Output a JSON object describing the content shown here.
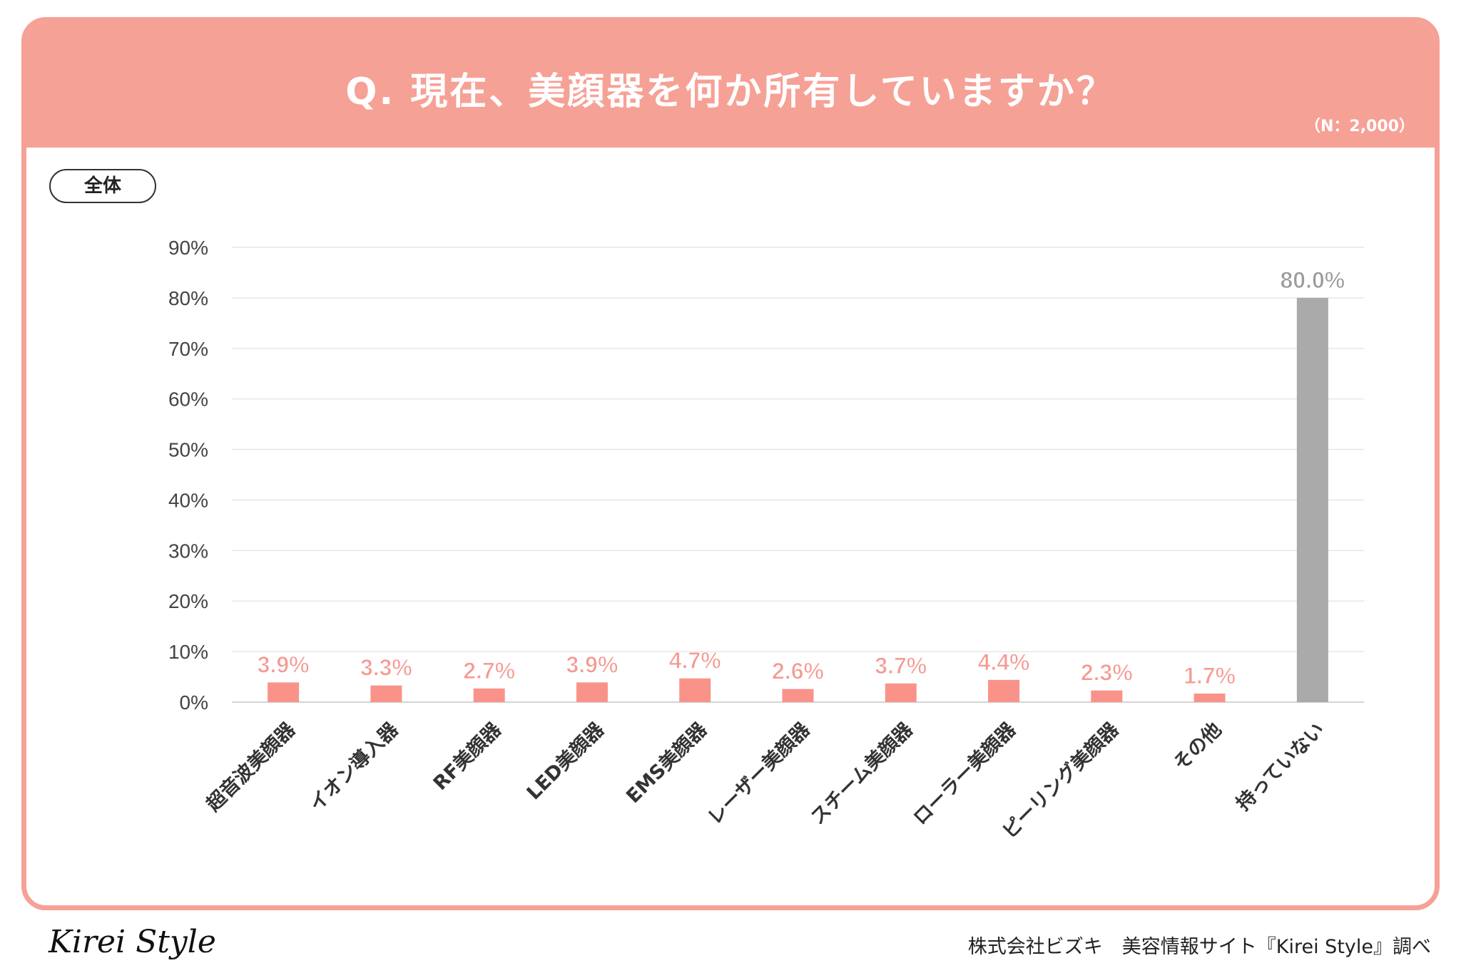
{
  "header": {
    "title": "Q. 現在、美顔器を何か所有していますか？",
    "sample_note": "（N：2,000）"
  },
  "segment_label": "全体",
  "footer": {
    "logo": "Kirei Style",
    "credit": "株式会社ビズキ　美容情報サイト『Kirei Style』調べ"
  },
  "colors": {
    "header_bg": "#f6a196",
    "bar": "#f9938a",
    "bar_highlight": "#aaaaaa",
    "value_label": "#f59a92",
    "value_label_highlight": "#9a9a9a",
    "grid": "#e6e6e6"
  },
  "chart_data": {
    "type": "bar",
    "categories": [
      "超音波美顔器",
      "イオン導入器",
      "RF美顔器",
      "LED美顔器",
      "EMS美顔器",
      "レーザー美顔器",
      "スチーム美顔器",
      "ローラー美顔器",
      "ピーリング美顔器",
      "その他",
      "持っていない"
    ],
    "values": [
      3.9,
      3.3,
      2.7,
      3.9,
      4.7,
      2.6,
      3.7,
      4.4,
      2.3,
      1.7,
      80.0
    ],
    "value_labels": [
      "3.9%",
      "3.3%",
      "2.7%",
      "3.9%",
      "4.7%",
      "2.6%",
      "3.7%",
      "4.4%",
      "2.3%",
      "1.7%",
      "80.0%"
    ],
    "highlight_index": 10,
    "yticks": [
      "0%",
      "10%",
      "20%",
      "30%",
      "40%",
      "50%",
      "60%",
      "70%",
      "80%",
      "90%"
    ],
    "ylim": [
      0,
      90
    ],
    "grid": true,
    "legend": "none"
  }
}
